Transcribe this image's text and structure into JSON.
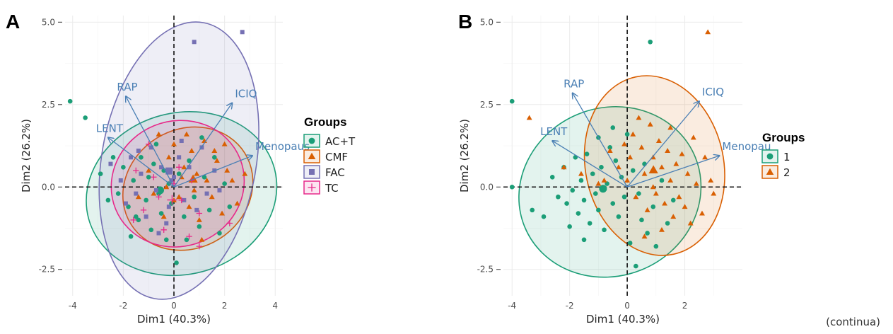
{
  "footer_text": "(continua)",
  "chart_data": [
    {
      "panel": "A",
      "type": "scatter",
      "xlabel": "Dim1 (40.3%)",
      "ylabel": "Dim2 (26.2%)",
      "xlim": [
        -4.3,
        4.3
      ],
      "ylim": [
        -3.3,
        5.2
      ],
      "x_ticks": [
        -4,
        -2,
        0,
        2,
        4
      ],
      "y_ticks": [
        -2.5,
        0.0,
        2.5,
        5.0
      ],
      "y_tick_labels": [
        "-2.5",
        "0.0",
        "2.5",
        "5.0"
      ],
      "grid": true,
      "legend_title": "Groups",
      "legend_position": "right",
      "variables": [
        {
          "name": "RAP",
          "x": -1.9,
          "y": 2.75
        },
        {
          "name": "ICIQ",
          "x": 2.3,
          "y": 2.55
        },
        {
          "name": "LENT",
          "x": -2.6,
          "y": 1.5
        },
        {
          "name": "Menopaus",
          "x": 3.1,
          "y": 0.95
        }
      ],
      "series": [
        {
          "name": "AC+T",
          "shape": "circle",
          "color": "#1b9e77",
          "ellipse": {
            "cx": 0.3,
            "cy": -0.2,
            "rx": 3.8,
            "ry": 2.45,
            "angle": -15
          },
          "points": [
            [
              -4.1,
              2.6
            ],
            [
              -3.5,
              2.1
            ],
            [
              -2.9,
              0.4
            ],
            [
              -2.6,
              -0.4
            ],
            [
              -2.2,
              -0.2
            ],
            [
              -2.0,
              0.6
            ],
            [
              -1.8,
              -0.6
            ],
            [
              -1.6,
              0.2
            ],
            [
              -1.4,
              -1.0
            ],
            [
              -1.3,
              0.9
            ],
            [
              -1.1,
              -0.4
            ],
            [
              -1.0,
              0.3
            ],
            [
              -0.9,
              -1.3
            ],
            [
              -0.8,
              0.7
            ],
            [
              -0.6,
              -0.2
            ],
            [
              -0.5,
              -0.8
            ],
            [
              -0.4,
              0.5
            ],
            [
              -0.3,
              -1.6
            ],
            [
              -0.2,
              0.1
            ],
            [
              -0.1,
              -0.5
            ],
            [
              0.1,
              -2.3
            ],
            [
              0.2,
              0.4
            ],
            [
              0.4,
              -0.9
            ],
            [
              0.6,
              0.8
            ],
            [
              0.8,
              -0.3
            ],
            [
              1.0,
              -1.2
            ],
            [
              1.2,
              0.3
            ],
            [
              1.4,
              -0.7
            ],
            [
              1.6,
              0.9
            ],
            [
              1.8,
              -1.4
            ],
            [
              2.0,
              0.1
            ],
            [
              2.2,
              -0.6
            ],
            [
              -1.7,
              -1.5
            ],
            [
              -2.4,
              0.9
            ],
            [
              -0.7,
              1.3
            ],
            [
              1.1,
              1.5
            ],
            [
              -1.5,
              -0.9
            ],
            [
              0.5,
              -1.6
            ]
          ]
        },
        {
          "name": "CMF",
          "shape": "triangle",
          "color": "#d95f02",
          "ellipse": {
            "cx": 0.55,
            "cy": -0.05,
            "rx": 2.65,
            "ry": 1.8,
            "angle": -32
          },
          "points": [
            [
              -1.4,
              -0.3
            ],
            [
              -1.0,
              0.5
            ],
            [
              -0.6,
              1.6
            ],
            [
              -0.4,
              -0.9
            ],
            [
              -0.2,
              0.9
            ],
            [
              0.0,
              1.3
            ],
            [
              0.2,
              -0.3
            ],
            [
              0.3,
              0.3
            ],
            [
              0.5,
              1.6
            ],
            [
              0.6,
              -0.6
            ],
            [
              0.7,
              1.1
            ],
            [
              0.9,
              0.4
            ],
            [
              1.0,
              -1.0
            ],
            [
              1.2,
              1.4
            ],
            [
              1.3,
              0.2
            ],
            [
              1.5,
              -0.3
            ],
            [
              1.7,
              0.8
            ],
            [
              1.9,
              -0.8
            ],
            [
              2.1,
              0.5
            ],
            [
              2.3,
              0.2
            ],
            [
              2.5,
              -0.5
            ],
            [
              2.8,
              0.4
            ],
            [
              -0.8,
              -0.2
            ],
            [
              0.4,
              0.6
            ],
            [
              1.1,
              -1.6
            ],
            [
              -0.3,
              0.0
            ],
            [
              0.8,
              -0.1
            ],
            [
              1.6,
              1.1
            ],
            [
              2.0,
              1.3
            ],
            [
              0.0,
              -0.4
            ]
          ]
        },
        {
          "name": "FAC",
          "shape": "square",
          "color": "#7570b3",
          "ellipse": {
            "cx": 0.2,
            "cy": 0.8,
            "rx": 3.05,
            "ry": 4.25,
            "angle": 10
          },
          "points": [
            [
              0.8,
              4.4
            ],
            [
              2.7,
              4.7
            ],
            [
              -2.5,
              0.7
            ],
            [
              -2.1,
              0.2
            ],
            [
              -1.9,
              -0.5
            ],
            [
              -1.7,
              0.9
            ],
            [
              -1.5,
              -0.2
            ],
            [
              -1.3,
              0.4
            ],
            [
              -1.1,
              -0.9
            ],
            [
              -0.9,
              1.2
            ],
            [
              -0.7,
              -0.1
            ],
            [
              -0.5,
              0.6
            ],
            [
              -0.3,
              -1.1
            ],
            [
              -0.1,
              0.2
            ],
            [
              0.0,
              0.3
            ],
            [
              0.2,
              0.9
            ],
            [
              0.4,
              -0.4
            ],
            [
              0.6,
              0.6
            ],
            [
              0.9,
              -0.7
            ],
            [
              1.1,
              1.2
            ],
            [
              1.3,
              -0.2
            ],
            [
              1.6,
              0.5
            ],
            [
              -0.6,
              -1.4
            ],
            [
              -1.4,
              1.1
            ],
            [
              0.3,
              1.4
            ],
            [
              -0.2,
              -0.6
            ],
            [
              1.8,
              -0.1
            ]
          ]
        },
        {
          "name": "TC",
          "shape": "plus",
          "color": "#e7298a",
          "ellipse": {
            "cx": 0.15,
            "cy": 0.1,
            "rx": 2.65,
            "ry": 1.9,
            "angle": -22
          },
          "points": [
            [
              -1.2,
              -0.7
            ],
            [
              -0.8,
              0.3
            ],
            [
              -0.4,
              -1.3
            ],
            [
              0.0,
              0.1
            ],
            [
              0.3,
              -0.4
            ],
            [
              0.6,
              -1.5
            ],
            [
              1.0,
              -0.8
            ],
            [
              1.0,
              -1.8
            ],
            [
              2.2,
              -1.1
            ],
            [
              -1.5,
              0.5
            ],
            [
              -1.0,
              1.3
            ],
            [
              0.7,
              0.2
            ],
            [
              -0.6,
              -0.3
            ],
            [
              0.2,
              0.6
            ],
            [
              -1.6,
              -1.0
            ]
          ]
        }
      ]
    },
    {
      "panel": "B",
      "type": "scatter",
      "xlabel": "Dim1 (40.3%)",
      "ylabel": "Dim2 (26.2%)",
      "xlim": [
        -4.3,
        4.0
      ],
      "ylim": [
        -3.3,
        5.2
      ],
      "x_ticks": [
        -4,
        -2,
        0,
        2
      ],
      "y_ticks": [
        -2.5,
        0.0,
        2.5,
        5.0
      ],
      "y_tick_labels": [
        "-2.5",
        "0.0",
        "2.5",
        "5.0"
      ],
      "grid": true,
      "legend_title": "Groups",
      "legend_position": "right",
      "variables": [
        {
          "name": "RAP",
          "x": -1.9,
          "y": 2.85
        },
        {
          "name": "ICIQ",
          "x": 2.5,
          "y": 2.6
        },
        {
          "name": "LENT",
          "x": -2.6,
          "y": 1.4
        },
        {
          "name": "Menopau",
          "x": 3.2,
          "y": 0.95
        }
      ],
      "series": [
        {
          "name": "1",
          "shape": "circle",
          "color": "#1b9e77",
          "ellipse": {
            "cx": -0.6,
            "cy": -0.15,
            "rx": 3.2,
            "ry": 2.55,
            "angle": -22
          },
          "points": [
            [
              -4.0,
              2.6
            ],
            [
              -3.3,
              -0.7
            ],
            [
              -2.9,
              -0.9
            ],
            [
              -2.6,
              0.3
            ],
            [
              -2.4,
              -0.3
            ],
            [
              -2.2,
              0.6
            ],
            [
              -2.1,
              -0.5
            ],
            [
              -1.9,
              -0.1
            ],
            [
              -1.8,
              0.9
            ],
            [
              -1.7,
              -0.8
            ],
            [
              -1.6,
              0.2
            ],
            [
              -1.5,
              -0.4
            ],
            [
              -1.4,
              1.0
            ],
            [
              -1.3,
              -1.1
            ],
            [
              -1.2,
              0.4
            ],
            [
              -1.1,
              -0.2
            ],
            [
              -1.0,
              -0.7
            ],
            [
              -0.9,
              0.6
            ],
            [
              -0.8,
              -1.3
            ],
            [
              -0.7,
              0.1
            ],
            [
              -0.6,
              1.2
            ],
            [
              -0.5,
              -0.5
            ],
            [
              -0.4,
              0.8
            ],
            [
              -0.3,
              -0.9
            ],
            [
              -0.2,
              0.3
            ],
            [
              -0.1,
              -0.3
            ],
            [
              0.0,
              1.6
            ],
            [
              0.1,
              -1.7
            ],
            [
              0.2,
              0.5
            ],
            [
              0.3,
              -2.4
            ],
            [
              0.4,
              -0.2
            ],
            [
              0.5,
              -1.0
            ],
            [
              0.6,
              0.7
            ],
            [
              0.7,
              -1.4
            ],
            [
              0.8,
              4.4
            ],
            [
              0.9,
              -0.6
            ],
            [
              1.0,
              -1.8
            ],
            [
              1.2,
              0.2
            ],
            [
              1.4,
              -1.1
            ],
            [
              1.6,
              -0.4
            ],
            [
              -4.0,
              0.0
            ],
            [
              -1.0,
              1.5
            ],
            [
              -0.5,
              1.8
            ],
            [
              -1.5,
              -1.6
            ],
            [
              -2.0,
              -1.2
            ]
          ]
        },
        {
          "name": "2",
          "shape": "triangle",
          "color": "#d95f02",
          "ellipse": {
            "cx": 0.95,
            "cy": 0.65,
            "rx": 2.4,
            "ry": 2.75,
            "angle": -12
          },
          "points": [
            [
              2.8,
              4.7
            ],
            [
              -3.4,
              2.1
            ],
            [
              -2.2,
              0.6
            ],
            [
              -1.6,
              0.4
            ],
            [
              -1.0,
              0.1
            ],
            [
              -0.6,
              1.1
            ],
            [
              -0.3,
              0.6
            ],
            [
              0.0,
              0.2
            ],
            [
              0.2,
              1.6
            ],
            [
              0.3,
              -0.3
            ],
            [
              0.5,
              1.2
            ],
            [
              0.6,
              0.4
            ],
            [
              0.7,
              -0.7
            ],
            [
              0.8,
              1.9
            ],
            [
              0.9,
              0.9
            ],
            [
              1.0,
              -0.2
            ],
            [
              1.1,
              1.4
            ],
            [
              1.2,
              0.6
            ],
            [
              1.3,
              -0.5
            ],
            [
              1.4,
              1.1
            ],
            [
              1.5,
              0.2
            ],
            [
              1.6,
              -0.9
            ],
            [
              1.7,
              0.7
            ],
            [
              1.8,
              -0.3
            ],
            [
              1.9,
              1.0
            ],
            [
              2.0,
              -0.6
            ],
            [
              2.1,
              0.4
            ],
            [
              2.2,
              -1.1
            ],
            [
              2.4,
              0.1
            ],
            [
              2.6,
              -0.8
            ],
            [
              2.9,
              0.2
            ],
            [
              3.0,
              -0.2
            ],
            [
              0.4,
              2.1
            ],
            [
              -0.1,
              1.3
            ],
            [
              1.2,
              -1.3
            ],
            [
              0.9,
              0.0
            ],
            [
              0.1,
              0.9
            ],
            [
              2.3,
              1.5
            ],
            [
              -0.8,
              0.2
            ],
            [
              1.5,
              1.8
            ],
            [
              0.6,
              -1.5
            ],
            [
              2.7,
              0.9
            ]
          ]
        }
      ]
    }
  ],
  "panels": [
    {
      "letter": "A"
    },
    {
      "letter": "B"
    }
  ],
  "colors": {
    "text_arrow": "#4a7fb4",
    "grid": "#ebebeb",
    "ellipse_fill_opacity": 0.12
  }
}
